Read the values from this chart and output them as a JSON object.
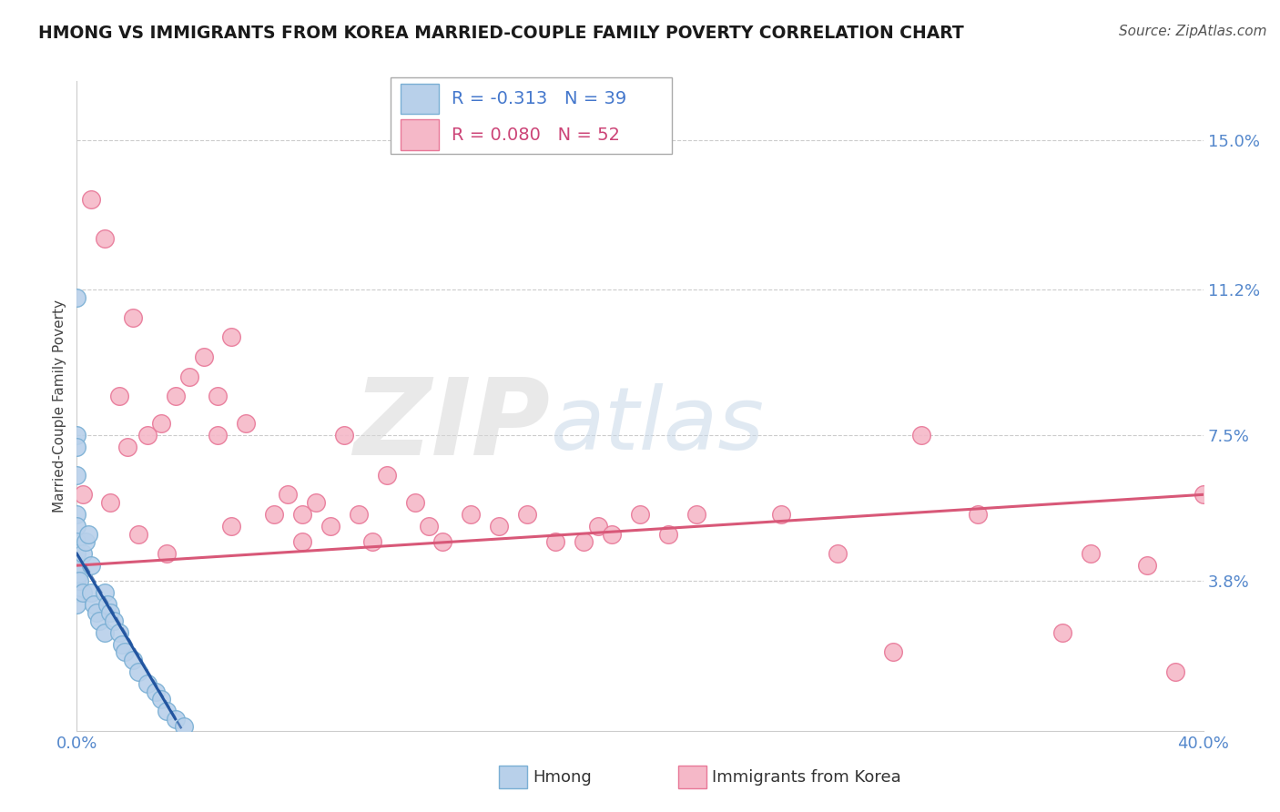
{
  "title": "HMONG VS IMMIGRANTS FROM KOREA MARRIED-COUPLE FAMILY POVERTY CORRELATION CHART",
  "source": "Source: ZipAtlas.com",
  "ylabel": "Married-Couple Family Poverty",
  "xlim": [
    0.0,
    40.0
  ],
  "ylim": [
    0.0,
    16.5
  ],
  "ytick_positions": [
    3.8,
    7.5,
    11.2,
    15.0
  ],
  "ytick_labels": [
    "3.8%",
    "7.5%",
    "11.2%",
    "15.0%"
  ],
  "hmong_color": "#b8d0ea",
  "korea_color": "#f5b8c8",
  "hmong_edge_color": "#7aafd4",
  "korea_edge_color": "#e87898",
  "trend_hmong_color": "#2255a0",
  "trend_korea_color": "#d85878",
  "legend_hmong_R": "R = -0.313",
  "legend_hmong_N": "N = 39",
  "legend_korea_R": "R = 0.080",
  "legend_korea_N": "N = 52",
  "legend_label_hmong": "Hmong",
  "legend_label_korea": "Immigrants from Korea",
  "watermark_zip": "ZIP",
  "watermark_atlas": "atlas",
  "background_color": "#ffffff",
  "hmong_x": [
    0.0,
    0.0,
    0.0,
    0.0,
    0.0,
    0.0,
    0.0,
    0.0,
    0.0,
    0.0,
    0.0,
    0.0,
    0.1,
    0.1,
    0.2,
    0.2,
    0.3,
    0.4,
    0.5,
    0.5,
    0.6,
    0.7,
    0.8,
    1.0,
    1.0,
    1.1,
    1.2,
    1.3,
    1.5,
    1.6,
    1.7,
    2.0,
    2.2,
    2.5,
    2.8,
    3.0,
    3.2,
    3.5,
    3.8
  ],
  "hmong_y": [
    11.0,
    7.5,
    7.2,
    6.5,
    5.5,
    5.2,
    4.8,
    4.5,
    4.2,
    3.8,
    3.5,
    3.2,
    4.0,
    3.8,
    4.5,
    3.5,
    4.8,
    5.0,
    4.2,
    3.5,
    3.2,
    3.0,
    2.8,
    3.5,
    2.5,
    3.2,
    3.0,
    2.8,
    2.5,
    2.2,
    2.0,
    1.8,
    1.5,
    1.2,
    1.0,
    0.8,
    0.5,
    0.3,
    0.1
  ],
  "korea_x": [
    0.5,
    1.0,
    1.5,
    1.8,
    2.0,
    2.5,
    3.0,
    3.5,
    4.0,
    4.5,
    5.0,
    5.0,
    5.5,
    6.0,
    7.0,
    7.5,
    8.0,
    8.5,
    9.0,
    9.5,
    10.0,
    10.5,
    11.0,
    12.0,
    12.5,
    13.0,
    14.0,
    15.0,
    16.0,
    17.0,
    18.0,
    18.5,
    19.0,
    20.0,
    21.0,
    22.0,
    25.0,
    27.0,
    29.0,
    30.0,
    32.0,
    35.0,
    36.0,
    38.0,
    39.0,
    40.0,
    0.2,
    1.2,
    2.2,
    3.2,
    5.5,
    8.0
  ],
  "korea_y": [
    13.5,
    12.5,
    8.5,
    7.2,
    10.5,
    7.5,
    7.8,
    8.5,
    9.0,
    9.5,
    7.5,
    8.5,
    10.0,
    7.8,
    5.5,
    6.0,
    5.5,
    5.8,
    5.2,
    7.5,
    5.5,
    4.8,
    6.5,
    5.8,
    5.2,
    4.8,
    5.5,
    5.2,
    5.5,
    4.8,
    4.8,
    5.2,
    5.0,
    5.5,
    5.0,
    5.5,
    5.5,
    4.5,
    2.0,
    7.5,
    5.5,
    2.5,
    4.5,
    4.2,
    1.5,
    6.0,
    6.0,
    5.8,
    5.0,
    4.5,
    5.2,
    4.8
  ]
}
